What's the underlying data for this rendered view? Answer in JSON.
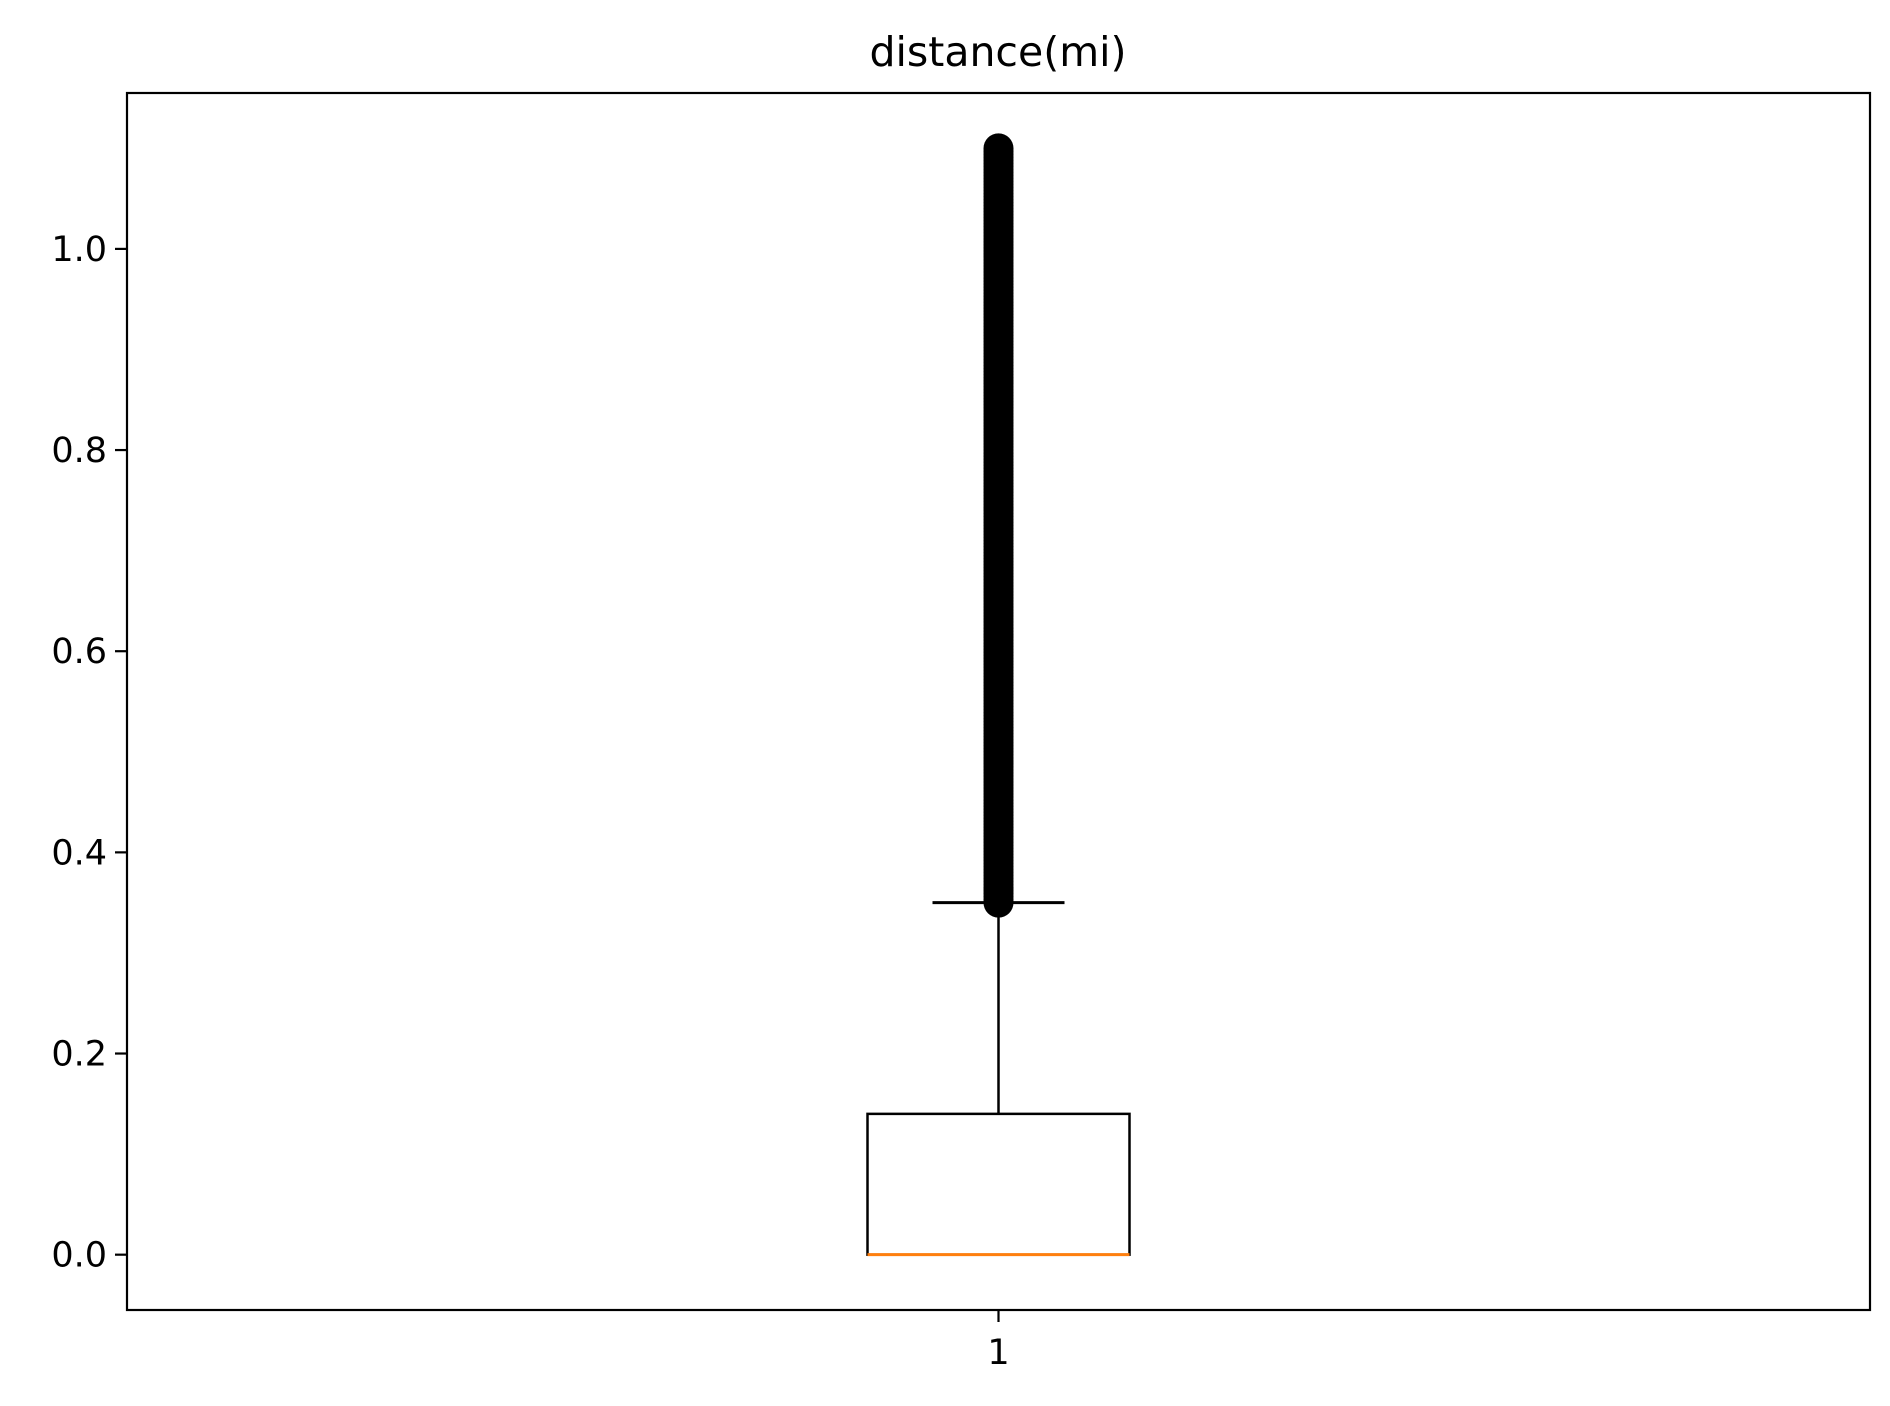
{
  "chart_data": {
    "type": "box",
    "title": "distance(mi)",
    "xlabel": "",
    "ylabel": "",
    "categories": [
      "1"
    ],
    "boxes": [
      {
        "category": "1",
        "whisker_low": 0.0,
        "q1": 0.0,
        "median": 0.0,
        "q3": 0.14,
        "whisker_high": 0.35,
        "outliers_min": 0.35,
        "outliers_max": 1.1
      }
    ],
    "ylim": [
      -0.055,
      1.155
    ],
    "xlim": [
      0.5,
      1.5
    ],
    "yticks": [
      0.0,
      0.2,
      0.4,
      0.6,
      0.8,
      1.0
    ],
    "ytick_labels": [
      "0.0",
      "0.2",
      "0.4",
      "0.6",
      "0.8",
      "1.0"
    ],
    "xtick_labels": [
      "1"
    ],
    "grid": false,
    "colors": {
      "box": "#000000",
      "median": "#ff7f0e",
      "outliers": "#000000"
    }
  }
}
